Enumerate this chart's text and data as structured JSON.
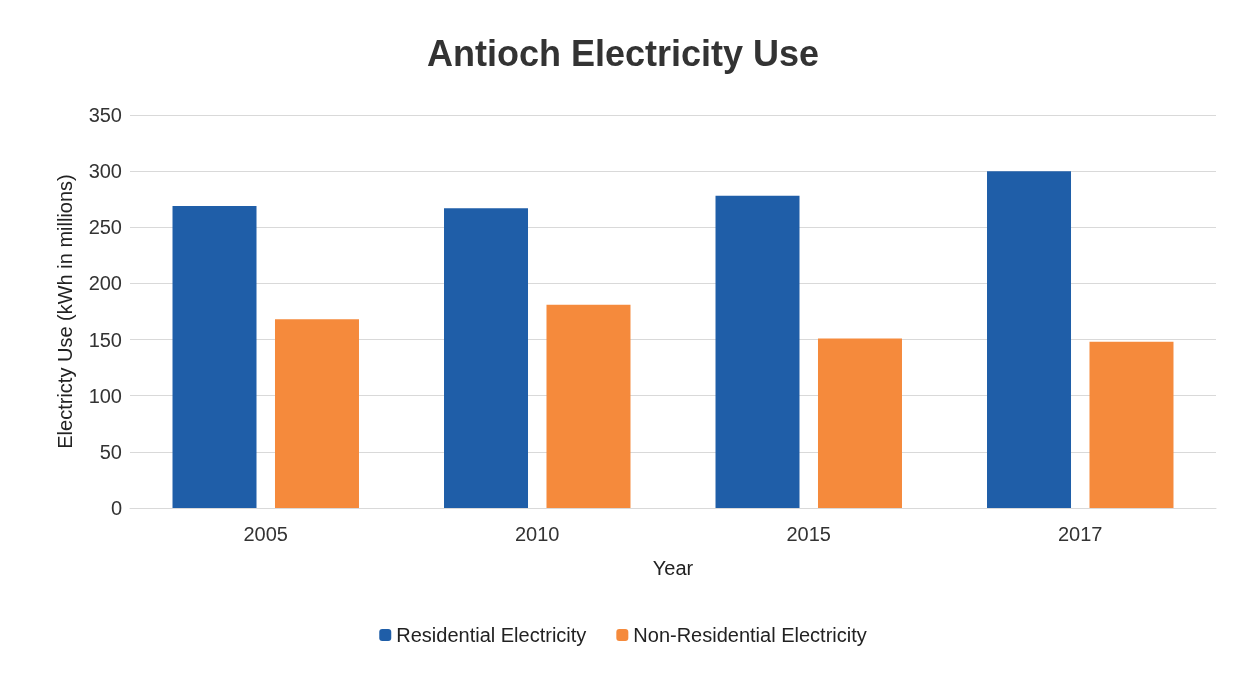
{
  "chart_data": {
    "type": "bar",
    "title": "Antioch Electricity Use",
    "xlabel": "Year",
    "ylabel": "Electricty Use (kWh in millions)",
    "categories": [
      "2005",
      "2010",
      "2015",
      "2017"
    ],
    "series": [
      {
        "name": "Residential Electricity",
        "color": "#1f5ea8",
        "values": [
          269,
          267,
          278,
          300
        ]
      },
      {
        "name": "Non-Residential Electricity",
        "color": "#f58a3c",
        "values": [
          168,
          181,
          151,
          148
        ]
      }
    ],
    "ylim": [
      0,
      350
    ],
    "yticks": [
      0,
      50,
      100,
      150,
      200,
      250,
      300,
      350
    ],
    "grid": "y",
    "legend": "bottom"
  }
}
